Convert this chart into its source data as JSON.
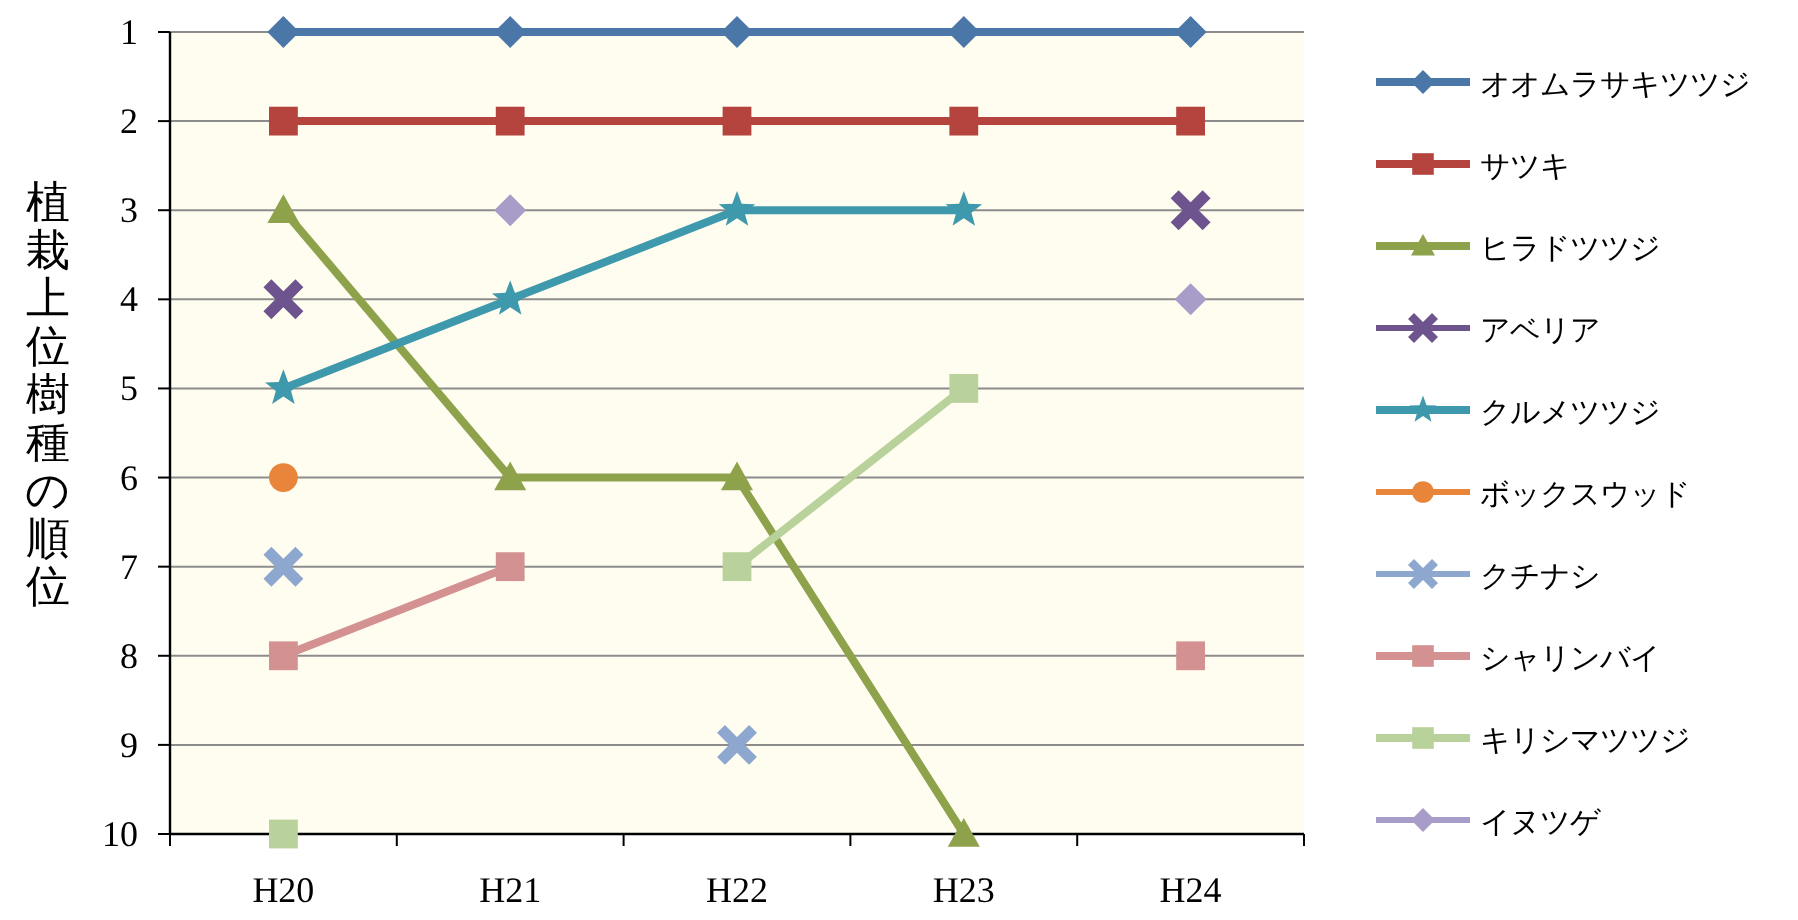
{
  "chart_data": {
    "type": "line",
    "ylabel": "植栽上位樹種の順位",
    "categories": [
      "H20",
      "H21",
      "H22",
      "H23",
      "H24"
    ],
    "ylim": [
      10,
      1
    ],
    "yticks": [
      1,
      2,
      3,
      4,
      5,
      6,
      7,
      8,
      9,
      10
    ],
    "grid": "y",
    "legend": "right",
    "line_style": "solid",
    "series": [
      {
        "name": "オオムラサキツツジ",
        "color": "#4a76a8",
        "marker": "diamond",
        "values": [
          1,
          1,
          1,
          1,
          1
        ]
      },
      {
        "name": "サツキ",
        "color": "#b5443f",
        "marker": "square",
        "values": [
          2,
          2,
          2,
          2,
          2
        ]
      },
      {
        "name": "ヒラドツツジ",
        "color": "#8ea24c",
        "marker": "triangle",
        "values": [
          3,
          6,
          6,
          10,
          null
        ]
      },
      {
        "name": "アベリア",
        "type": "scatter",
        "color": "#6e548e",
        "marker": "cross",
        "values": [
          4,
          null,
          null,
          null,
          3
        ]
      },
      {
        "name": "クルメツツジ",
        "color": "#3f99ad",
        "marker": "star",
        "values": [
          5,
          4,
          3,
          3,
          null
        ]
      },
      {
        "name": "ボックスウッド",
        "type": "scatter",
        "color": "#e8853a",
        "marker": "circle",
        "values": [
          6,
          null,
          null,
          null,
          null
        ]
      },
      {
        "name": "クチナシ",
        "type": "scatter",
        "color": "#8ea7cf",
        "marker": "cross",
        "values": [
          7,
          null,
          9,
          null,
          null
        ]
      },
      {
        "name": "シャリンバイ",
        "color": "#d39291",
        "marker": "square",
        "values": [
          8,
          7,
          null,
          null,
          8
        ]
      },
      {
        "name": "キリシマツツジ",
        "color": "#b9d19a",
        "marker": "square",
        "values": [
          10,
          null,
          7,
          5,
          null
        ]
      },
      {
        "name": "イヌツゲ",
        "type": "scatter",
        "color": "#a89dc9",
        "marker": "diamond",
        "values": [
          null,
          3,
          null,
          null,
          4
        ]
      }
    ]
  }
}
